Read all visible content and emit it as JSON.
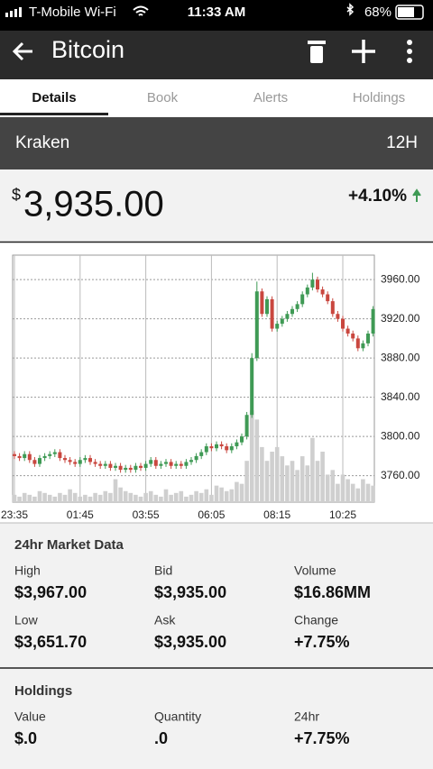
{
  "status": {
    "carrier": "T-Mobile Wi-Fi",
    "time": "11:33 AM",
    "battery": "68%"
  },
  "header": {
    "title": "Bitcoin"
  },
  "tabs": [
    "Details",
    "Book",
    "Alerts",
    "Holdings"
  ],
  "exchange": {
    "name": "Kraken",
    "interval": "12H"
  },
  "price": {
    "currency": "$",
    "amount": "3,935.00",
    "change": "+4.10%"
  },
  "chart_data": {
    "type": "candlestick",
    "categories": [
      "23:35",
      null,
      null,
      null,
      null,
      null,
      null,
      null,
      null,
      null,
      null,
      null,
      null,
      "01:45",
      null,
      null,
      null,
      null,
      null,
      null,
      null,
      null,
      null,
      null,
      null,
      null,
      "03:55",
      null,
      null,
      null,
      null,
      null,
      null,
      null,
      null,
      null,
      null,
      null,
      null,
      "06:05",
      null,
      null,
      null,
      null,
      null,
      null,
      null,
      null,
      null,
      null,
      null,
      null,
      "08:15",
      null,
      null,
      null,
      null,
      null,
      null,
      null,
      null,
      null,
      null,
      null,
      null,
      "10:25",
      null,
      null,
      null,
      null,
      null,
      null
    ],
    "open": [
      3782,
      3780,
      3778,
      3782,
      3776,
      3772,
      3778,
      3780,
      3782,
      3784,
      3778,
      3776,
      3774,
      3772,
      3776,
      3778,
      3774,
      3772,
      3770,
      3772,
      3768,
      3770,
      3766,
      3768,
      3766,
      3770,
      3768,
      3772,
      3776,
      3770,
      3772,
      3774,
      3770,
      3772,
      3770,
      3774,
      3776,
      3780,
      3784,
      3790,
      3788,
      3792,
      3790,
      3786,
      3790,
      3794,
      3800,
      3822,
      3880,
      3948,
      3925,
      3940,
      3910,
      3915,
      3920,
      3925,
      3930,
      3935,
      3945,
      3952,
      3960,
      3950,
      3945,
      3938,
      3925,
      3920,
      3910,
      3905,
      3900,
      3890,
      3895,
      3905
    ],
    "high": [
      3785,
      3783,
      3785,
      3785,
      3779,
      3781,
      3783,
      3785,
      3787,
      3787,
      3781,
      3779,
      3777,
      3779,
      3781,
      3781,
      3777,
      3775,
      3775,
      3775,
      3773,
      3773,
      3771,
      3771,
      3773,
      3773,
      3775,
      3779,
      3779,
      3775,
      3777,
      3777,
      3775,
      3775,
      3777,
      3779,
      3783,
      3787,
      3793,
      3793,
      3795,
      3795,
      3793,
      3793,
      3797,
      3803,
      3825,
      3885,
      3958,
      3951,
      3943,
      3943,
      3918,
      3923,
      3928,
      3933,
      3938,
      3948,
      3955,
      3967,
      3963,
      3953,
      3948,
      3941,
      3928,
      3923,
      3913,
      3908,
      3903,
      3898,
      3908,
      3933
    ],
    "low": [
      3777,
      3775,
      3775,
      3773,
      3769,
      3769,
      3775,
      3777,
      3779,
      3775,
      3773,
      3771,
      3769,
      3769,
      3773,
      3771,
      3769,
      3767,
      3767,
      3765,
      3765,
      3763,
      3763,
      3763,
      3763,
      3765,
      3765,
      3769,
      3767,
      3767,
      3769,
      3767,
      3767,
      3767,
      3767,
      3771,
      3773,
      3777,
      3781,
      3785,
      3785,
      3787,
      3783,
      3783,
      3787,
      3791,
      3797,
      3819,
      3877,
      3922,
      3922,
      3907,
      3907,
      3912,
      3917,
      3922,
      3927,
      3932,
      3942,
      3949,
      3947,
      3942,
      3935,
      3922,
      3917,
      3907,
      3902,
      3897,
      3887,
      3887,
      3892,
      3902
    ],
    "close": [
      3780,
      3778,
      3782,
      3776,
      3772,
      3778,
      3780,
      3782,
      3784,
      3778,
      3776,
      3774,
      3772,
      3776,
      3778,
      3774,
      3772,
      3770,
      3772,
      3768,
      3770,
      3766,
      3768,
      3766,
      3770,
      3768,
      3772,
      3776,
      3770,
      3772,
      3774,
      3770,
      3772,
      3770,
      3774,
      3776,
      3780,
      3784,
      3790,
      3788,
      3792,
      3790,
      3786,
      3790,
      3794,
      3800,
      3822,
      3880,
      3948,
      3925,
      3940,
      3910,
      3915,
      3920,
      3925,
      3930,
      3935,
      3945,
      3952,
      3960,
      3950,
      3945,
      3938,
      3925,
      3920,
      3910,
      3905,
      3900,
      3890,
      3895,
      3905,
      3930
    ],
    "volume": [
      8,
      6,
      10,
      8,
      6,
      12,
      10,
      8,
      6,
      10,
      8,
      14,
      10,
      6,
      8,
      6,
      10,
      8,
      12,
      10,
      25,
      16,
      12,
      10,
      8,
      6,
      10,
      12,
      8,
      6,
      14,
      8,
      10,
      12,
      6,
      8,
      12,
      10,
      14,
      8,
      18,
      16,
      12,
      14,
      22,
      20,
      45,
      100,
      90,
      60,
      45,
      55,
      60,
      50,
      40,
      45,
      35,
      50,
      40,
      70,
      45,
      55,
      30,
      35,
      20,
      30,
      25,
      20,
      15,
      25,
      20,
      18
    ],
    "ylim": [
      3733,
      3985
    ],
    "yticks": [
      {
        "value": 3760,
        "label": "3760.00"
      },
      {
        "value": 3800,
        "label": "3800.00"
      },
      {
        "value": 3840,
        "label": "3840.00"
      },
      {
        "value": 3880,
        "label": "3880.00"
      },
      {
        "value": 3920,
        "label": "3920.00"
      },
      {
        "value": 3960,
        "label": "3960.00"
      }
    ],
    "volume_lim": [
      0,
      110
    ],
    "grid": true,
    "up_color": "#3f9a55",
    "down_color": "#c9473f",
    "volume_color": "#cfcfcf"
  },
  "market": {
    "title": "24hr Market Data",
    "items": [
      {
        "label": "High",
        "value": "$3,967.00"
      },
      {
        "label": "Bid",
        "value": "$3,935.00"
      },
      {
        "label": "Volume",
        "value": "$16.86MM"
      },
      {
        "label": "Low",
        "value": "$3,651.70"
      },
      {
        "label": "Ask",
        "value": "$3,935.00"
      },
      {
        "label": "Change",
        "value": "+7.75%"
      }
    ]
  },
  "holdings": {
    "title": "Holdings",
    "items": [
      {
        "label": "Value",
        "value": "$.0"
      },
      {
        "label": "Quantity",
        "value": ".0"
      },
      {
        "label": "24hr",
        "value": "+7.75%"
      }
    ]
  }
}
